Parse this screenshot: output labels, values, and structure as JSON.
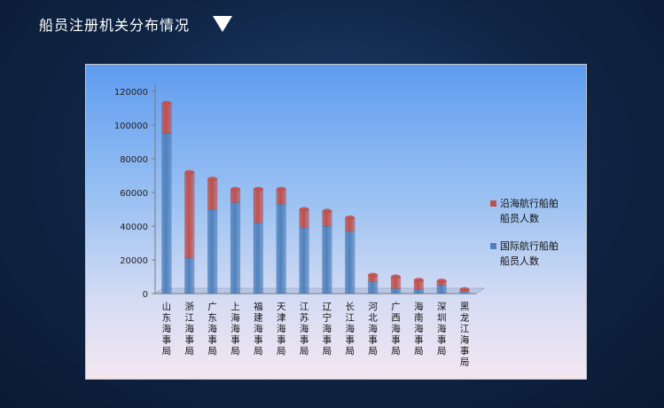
{
  "header": {
    "title": "船员注册机关分布情况",
    "dropdown_icon": "triangle-down-icon"
  },
  "chart_data": {
    "type": "bar",
    "stacked": true,
    "title": "",
    "xlabel": "",
    "ylabel": "",
    "ylim": [
      0,
      120000
    ],
    "yticks": [
      0,
      20000,
      40000,
      60000,
      80000,
      100000,
      120000
    ],
    "grid": false,
    "legend_position": "right",
    "categories": [
      "山东海事局",
      "浙江海事局",
      "广东海事局",
      "上海海事局",
      "福建海事局",
      "天津海事局",
      "江苏海事局",
      "辽宁海事局",
      "长江海事局",
      "河北海事局",
      "广西海事局",
      "海南海事局",
      "深圳海事局",
      "黑龙江海事局"
    ],
    "series": [
      {
        "name": "国际航行船舶船员人数",
        "color": "#4f81bd",
        "values": [
          95000,
          21000,
          50000,
          54000,
          42000,
          53000,
          39000,
          40000,
          37000,
          7000,
          3000,
          2500,
          5000,
          1500
        ]
      },
      {
        "name": "沿海航行船舶船员人数",
        "color": "#c0504d",
        "values": [
          18000,
          51000,
          18000,
          8000,
          20000,
          9000,
          11000,
          9000,
          8000,
          4000,
          7000,
          5500,
          2500,
          1000
        ]
      }
    ]
  }
}
